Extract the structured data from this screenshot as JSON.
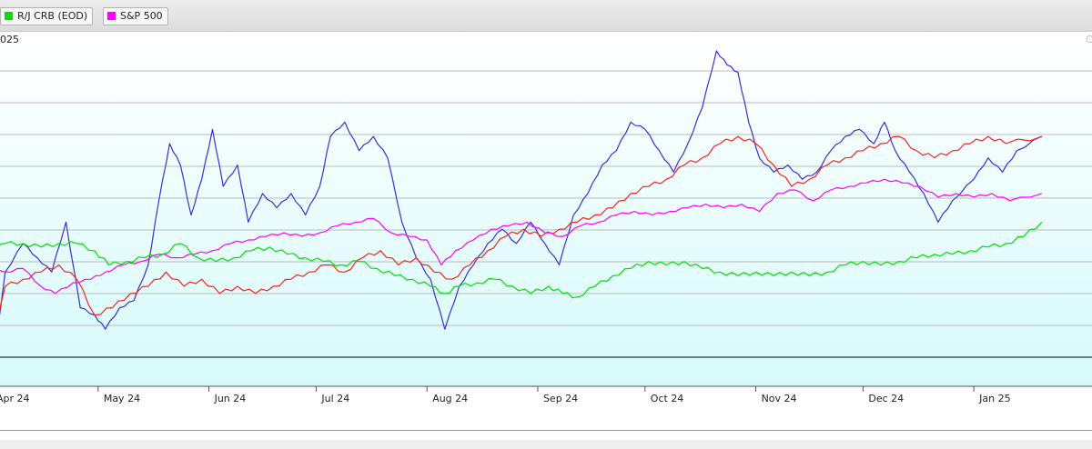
{
  "legend": [
    {
      "label": "R/J CRB (EOD)",
      "color": "#00e000"
    },
    {
      "label": "S&P 500",
      "color": "#ff00ff"
    }
  ],
  "header": {
    "date_fragment": "025",
    "corner_fragment": "C"
  },
  "colors": {
    "background_top": "#ffffff",
    "background_bottom": "#d6fafa",
    "gridline": "#bcbcbc",
    "baseline": "#000000"
  },
  "chart_data": {
    "type": "line",
    "title": "",
    "xlabel": "",
    "ylabel": "",
    "y_axis_labels_visible": false,
    "grid": "horizontal",
    "legend_placement": "top-left",
    "xlim": [
      "2024-04-01",
      "2025-01-31"
    ],
    "x_ticks": [
      {
        "label": "Apr 24",
        "date": "2024-04-01"
      },
      {
        "label": "May 24",
        "date": "2024-05-01"
      },
      {
        "label": "Jun 24",
        "date": "2024-06-01"
      },
      {
        "label": "Jul 24",
        "date": "2024-07-01"
      },
      {
        "label": "Aug 24",
        "date": "2024-08-01"
      },
      {
        "label": "Sep 24",
        "date": "2024-09-01"
      },
      {
        "label": "Oct 24",
        "date": "2024-10-01"
      },
      {
        "label": "Nov 24",
        "date": "2024-11-01"
      },
      {
        "label": "Dec 24",
        "date": "2024-12-01"
      },
      {
        "label": "Jan 25",
        "date": "2025-01-01"
      }
    ],
    "series": [
      {
        "color": "#3a2fd6",
        "points": [
          [
            "2024-04-01",
            84
          ],
          [
            "2024-04-05",
            99
          ],
          [
            "2024-04-10",
            103
          ],
          [
            "2024-04-14",
            101
          ],
          [
            "2024-04-18",
            99
          ],
          [
            "2024-04-22",
            106
          ],
          [
            "2024-04-26",
            94
          ],
          [
            "2024-04-30",
            93
          ],
          [
            "2024-05-03",
            91
          ],
          [
            "2024-05-07",
            94
          ],
          [
            "2024-05-11",
            95
          ],
          [
            "2024-05-15",
            100
          ],
          [
            "2024-05-18",
            109
          ],
          [
            "2024-05-21",
            117
          ],
          [
            "2024-05-24",
            114
          ],
          [
            "2024-05-27",
            107
          ],
          [
            "2024-05-30",
            112
          ],
          [
            "2024-06-02",
            119
          ],
          [
            "2024-06-05",
            111
          ],
          [
            "2024-06-09",
            114
          ],
          [
            "2024-06-12",
            106
          ],
          [
            "2024-06-16",
            110
          ],
          [
            "2024-06-20",
            108
          ],
          [
            "2024-06-24",
            110
          ],
          [
            "2024-06-28",
            107
          ],
          [
            "2024-07-02",
            111
          ],
          [
            "2024-07-05",
            118
          ],
          [
            "2024-07-09",
            120
          ],
          [
            "2024-07-13",
            116
          ],
          [
            "2024-07-17",
            118
          ],
          [
            "2024-07-21",
            115
          ],
          [
            "2024-07-25",
            106
          ],
          [
            "2024-07-29",
            101
          ],
          [
            "2024-08-02",
            98
          ],
          [
            "2024-08-06",
            91
          ],
          [
            "2024-08-10",
            97
          ],
          [
            "2024-08-14",
            100
          ],
          [
            "2024-08-18",
            103
          ],
          [
            "2024-08-22",
            105
          ],
          [
            "2024-08-26",
            103
          ],
          [
            "2024-08-30",
            106
          ],
          [
            "2024-09-03",
            103
          ],
          [
            "2024-09-07",
            100
          ],
          [
            "2024-09-11",
            107
          ],
          [
            "2024-09-15",
            110
          ],
          [
            "2024-09-19",
            114
          ],
          [
            "2024-09-23",
            116
          ],
          [
            "2024-09-27",
            120
          ],
          [
            "2024-10-01",
            119
          ],
          [
            "2024-10-05",
            116
          ],
          [
            "2024-10-09",
            113
          ],
          [
            "2024-10-13",
            117
          ],
          [
            "2024-10-17",
            122
          ],
          [
            "2024-10-21",
            130
          ],
          [
            "2024-10-24",
            128
          ],
          [
            "2024-10-27",
            127
          ],
          [
            "2024-10-30",
            120
          ],
          [
            "2024-11-02",
            115
          ],
          [
            "2024-11-06",
            113
          ],
          [
            "2024-11-10",
            114
          ],
          [
            "2024-11-14",
            112
          ],
          [
            "2024-11-18",
            113
          ],
          [
            "2024-11-22",
            116
          ],
          [
            "2024-11-26",
            118
          ],
          [
            "2024-11-30",
            119
          ],
          [
            "2024-12-04",
            117
          ],
          [
            "2024-12-07",
            120
          ],
          [
            "2024-12-10",
            116
          ],
          [
            "2024-12-14",
            113
          ],
          [
            "2024-12-18",
            110
          ],
          [
            "2024-12-22",
            106
          ],
          [
            "2024-12-26",
            109
          ],
          [
            "2025-01-01",
            112
          ],
          [
            "2025-01-05",
            115
          ],
          [
            "2025-01-09",
            113
          ],
          [
            "2025-01-13",
            116
          ],
          [
            "2025-01-20",
            118
          ]
        ]
      },
      {
        "color": "#ff2020",
        "points": [
          [
            "2024-04-01",
            88
          ],
          [
            "2024-04-05",
            97
          ],
          [
            "2024-04-10",
            98
          ],
          [
            "2024-04-15",
            99
          ],
          [
            "2024-04-20",
            100
          ],
          [
            "2024-04-25",
            98
          ],
          [
            "2024-04-30",
            93
          ],
          [
            "2024-05-05",
            94
          ],
          [
            "2024-05-10",
            96
          ],
          [
            "2024-05-15",
            97
          ],
          [
            "2024-05-20",
            99
          ],
          [
            "2024-05-25",
            97
          ],
          [
            "2024-05-30",
            98
          ],
          [
            "2024-06-04",
            96
          ],
          [
            "2024-06-09",
            97
          ],
          [
            "2024-06-14",
            96
          ],
          [
            "2024-06-19",
            97
          ],
          [
            "2024-06-24",
            98
          ],
          [
            "2024-06-29",
            99
          ],
          [
            "2024-07-04",
            100
          ],
          [
            "2024-07-09",
            99
          ],
          [
            "2024-07-14",
            101
          ],
          [
            "2024-07-19",
            102
          ],
          [
            "2024-07-24",
            100
          ],
          [
            "2024-07-29",
            101
          ],
          [
            "2024-08-03",
            99
          ],
          [
            "2024-08-08",
            98
          ],
          [
            "2024-08-13",
            100
          ],
          [
            "2024-08-18",
            102
          ],
          [
            "2024-08-23",
            104
          ],
          [
            "2024-08-28",
            105
          ],
          [
            "2024-09-02",
            104
          ],
          [
            "2024-09-07",
            105
          ],
          [
            "2024-09-12",
            106
          ],
          [
            "2024-09-17",
            107
          ],
          [
            "2024-09-22",
            108
          ],
          [
            "2024-09-27",
            110
          ],
          [
            "2024-10-02",
            111
          ],
          [
            "2024-10-07",
            112
          ],
          [
            "2024-10-12",
            114
          ],
          [
            "2024-10-17",
            115
          ],
          [
            "2024-10-22",
            117
          ],
          [
            "2024-10-27",
            118
          ],
          [
            "2024-11-01",
            117
          ],
          [
            "2024-11-06",
            114
          ],
          [
            "2024-11-11",
            111
          ],
          [
            "2024-11-16",
            112
          ],
          [
            "2024-11-21",
            114
          ],
          [
            "2024-11-26",
            115
          ],
          [
            "2024-12-01",
            116
          ],
          [
            "2024-12-06",
            117
          ],
          [
            "2024-12-11",
            118
          ],
          [
            "2024-12-16",
            116
          ],
          [
            "2024-12-21",
            115
          ],
          [
            "2024-12-26",
            116
          ],
          [
            "2024-12-31",
            117
          ],
          [
            "2025-01-05",
            118
          ],
          [
            "2025-01-10",
            117
          ],
          [
            "2025-01-20",
            118
          ]
        ]
      },
      {
        "name": "S&P 500",
        "color": "#ff00ff",
        "points": [
          [
            "2024-04-01",
            100
          ],
          [
            "2024-04-05",
            99
          ],
          [
            "2024-04-10",
            99.5
          ],
          [
            "2024-04-15",
            97
          ],
          [
            "2024-04-19",
            96
          ],
          [
            "2024-04-24",
            97.5
          ],
          [
            "2024-04-29",
            98
          ],
          [
            "2024-05-03",
            99
          ],
          [
            "2024-05-08",
            100
          ],
          [
            "2024-05-13",
            100.5
          ],
          [
            "2024-05-18",
            101.5
          ],
          [
            "2024-05-23",
            101
          ],
          [
            "2024-05-28",
            101.5
          ],
          [
            "2024-06-02",
            102
          ],
          [
            "2024-06-07",
            103
          ],
          [
            "2024-06-12",
            103.5
          ],
          [
            "2024-06-17",
            104
          ],
          [
            "2024-06-22",
            104.5
          ],
          [
            "2024-06-27",
            104
          ],
          [
            "2024-07-02",
            104.5
          ],
          [
            "2024-07-07",
            105.5
          ],
          [
            "2024-07-12",
            106
          ],
          [
            "2024-07-17",
            106.5
          ],
          [
            "2024-07-22",
            104.5
          ],
          [
            "2024-07-27",
            104
          ],
          [
            "2024-08-01",
            103.5
          ],
          [
            "2024-08-05",
            100
          ],
          [
            "2024-08-09",
            102
          ],
          [
            "2024-08-14",
            103.5
          ],
          [
            "2024-08-19",
            105
          ],
          [
            "2024-08-24",
            105.5
          ],
          [
            "2024-08-29",
            106
          ],
          [
            "2024-09-03",
            104.5
          ],
          [
            "2024-09-08",
            104
          ],
          [
            "2024-09-13",
            105.5
          ],
          [
            "2024-09-18",
            106
          ],
          [
            "2024-09-23",
            107
          ],
          [
            "2024-09-28",
            107.5
          ],
          [
            "2024-10-03",
            107
          ],
          [
            "2024-10-08",
            107.5
          ],
          [
            "2024-10-13",
            108
          ],
          [
            "2024-10-18",
            108.5
          ],
          [
            "2024-10-23",
            108
          ],
          [
            "2024-10-28",
            108.5
          ],
          [
            "2024-11-02",
            107.5
          ],
          [
            "2024-11-07",
            110
          ],
          [
            "2024-11-12",
            110.5
          ],
          [
            "2024-11-17",
            109
          ],
          [
            "2024-11-22",
            110.5
          ],
          [
            "2024-11-27",
            111
          ],
          [
            "2024-12-02",
            111.5
          ],
          [
            "2024-12-07",
            112
          ],
          [
            "2024-12-12",
            111.5
          ],
          [
            "2024-12-17",
            111
          ],
          [
            "2024-12-22",
            109.5
          ],
          [
            "2024-12-27",
            110
          ],
          [
            "2025-01-01",
            109.5
          ],
          [
            "2025-01-06",
            110
          ],
          [
            "2025-01-11",
            109
          ],
          [
            "2025-01-20",
            110
          ]
        ]
      },
      {
        "name": "R/J CRB (EOD)",
        "color": "#00e000",
        "points": [
          [
            "2024-04-01",
            102
          ],
          [
            "2024-04-05",
            103
          ],
          [
            "2024-04-10",
            103
          ],
          [
            "2024-04-15",
            102.5
          ],
          [
            "2024-04-20",
            103
          ],
          [
            "2024-04-25",
            103
          ],
          [
            "2024-04-30",
            102
          ],
          [
            "2024-05-04",
            100
          ],
          [
            "2024-05-09",
            100.5
          ],
          [
            "2024-05-14",
            101
          ],
          [
            "2024-05-19",
            101.5
          ],
          [
            "2024-05-24",
            103
          ],
          [
            "2024-05-29",
            101
          ],
          [
            "2024-06-03",
            100.5
          ],
          [
            "2024-06-08",
            101
          ],
          [
            "2024-06-13",
            102
          ],
          [
            "2024-06-18",
            102.5
          ],
          [
            "2024-06-23",
            101.5
          ],
          [
            "2024-06-28",
            101
          ],
          [
            "2024-07-03",
            100.5
          ],
          [
            "2024-07-08",
            100
          ],
          [
            "2024-07-13",
            100.5
          ],
          [
            "2024-07-18",
            99.5
          ],
          [
            "2024-07-23",
            98.5
          ],
          [
            "2024-07-28",
            98
          ],
          [
            "2024-08-02",
            97
          ],
          [
            "2024-08-06",
            96
          ],
          [
            "2024-08-10",
            97
          ],
          [
            "2024-08-15",
            97.5
          ],
          [
            "2024-08-20",
            98
          ],
          [
            "2024-08-25",
            97
          ],
          [
            "2024-08-30",
            96
          ],
          [
            "2024-09-04",
            97
          ],
          [
            "2024-09-08",
            96
          ],
          [
            "2024-09-12",
            95.5
          ],
          [
            "2024-09-17",
            97
          ],
          [
            "2024-09-22",
            98.5
          ],
          [
            "2024-09-27",
            99.5
          ],
          [
            "2024-10-02",
            100.5
          ],
          [
            "2024-10-07",
            100
          ],
          [
            "2024-10-12",
            100.5
          ],
          [
            "2024-10-17",
            99.5
          ],
          [
            "2024-10-22",
            99
          ],
          [
            "2024-10-27",
            98.5
          ],
          [
            "2024-11-01",
            99
          ],
          [
            "2024-11-06",
            98.5
          ],
          [
            "2024-11-11",
            99
          ],
          [
            "2024-11-16",
            98.5
          ],
          [
            "2024-11-21",
            99
          ],
          [
            "2024-11-26",
            100
          ],
          [
            "2024-12-01",
            100.5
          ],
          [
            "2024-12-06",
            100
          ],
          [
            "2024-12-11",
            100.5
          ],
          [
            "2024-12-16",
            101
          ],
          [
            "2024-12-21",
            101.5
          ],
          [
            "2024-12-26",
            101.5
          ],
          [
            "2024-12-31",
            102
          ],
          [
            "2025-01-05",
            102.5
          ],
          [
            "2025-01-10",
            103
          ],
          [
            "2025-01-15",
            104
          ],
          [
            "2025-01-20",
            106
          ]
        ]
      }
    ]
  }
}
